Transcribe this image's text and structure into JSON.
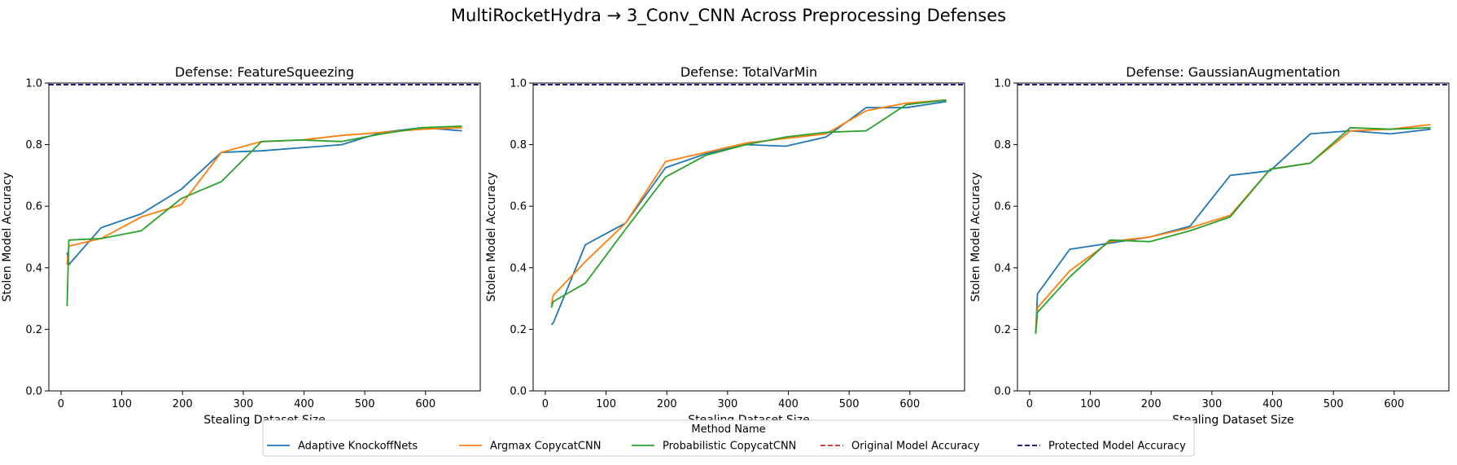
{
  "figure": {
    "title": "MultiRocketHydra → 3_Conv_CNN Across Preprocessing Defenses"
  },
  "legend": {
    "title": "Method Name",
    "entries": [
      {
        "label": "Adaptive KnockoffNets",
        "color": "#1f77b4",
        "dash": false
      },
      {
        "label": "Argmax CopycatCNN",
        "color": "#ff7f0e",
        "dash": false
      },
      {
        "label": "Probabilistic CopycatCNN",
        "color": "#2ca02c",
        "dash": false
      },
      {
        "label": "Original Model Accuracy",
        "color": "#d62728",
        "dash": true
      },
      {
        "label": "Protected Model Accuracy",
        "color": "#00008b",
        "dash": true
      }
    ]
  },
  "chart_data": [
    {
      "type": "line",
      "title": "Defense: FeatureSqueezing",
      "xlabel": "Stealing Dataset Size",
      "ylabel": "Stolen Model Accuracy",
      "xlim": [
        -20,
        690
      ],
      "ylim": [
        0,
        1
      ],
      "xticks": [
        0,
        100,
        200,
        300,
        400,
        500,
        600
      ],
      "yticks": [
        0.0,
        0.2,
        0.4,
        0.6,
        0.8,
        1.0
      ],
      "hlines": [
        {
          "name": "Original Model Accuracy",
          "y": 0.995,
          "color": "#d62728"
        },
        {
          "name": "Protected Model Accuracy",
          "y": 0.995,
          "color": "#00008b"
        }
      ],
      "series": [
        {
          "name": "Adaptive KnockoffNets",
          "color": "#1f77b4",
          "x": [
            10,
            13,
            66,
            132,
            198,
            264,
            330,
            396,
            462,
            528,
            594,
            660
          ],
          "y": [
            0.45,
            0.41,
            0.53,
            0.575,
            0.655,
            0.775,
            0.78,
            0.79,
            0.8,
            0.84,
            0.855,
            0.845
          ]
        },
        {
          "name": "Argmax CopycatCNN",
          "color": "#ff7f0e",
          "x": [
            10,
            13,
            66,
            132,
            198,
            264,
            330,
            396,
            462,
            528,
            594,
            660
          ],
          "y": [
            0.41,
            0.47,
            0.495,
            0.565,
            0.605,
            0.775,
            0.81,
            0.815,
            0.83,
            0.84,
            0.85,
            0.855
          ]
        },
        {
          "name": "Probabilistic CopycatCNN",
          "color": "#2ca02c",
          "x": [
            10,
            13,
            66,
            132,
            198,
            264,
            330,
            396,
            462,
            528,
            594,
            660
          ],
          "y": [
            0.275,
            0.49,
            0.495,
            0.52,
            0.625,
            0.68,
            0.81,
            0.815,
            0.81,
            0.835,
            0.855,
            0.86
          ]
        }
      ]
    },
    {
      "type": "line",
      "title": "Defense: TotalVarMin",
      "xlabel": "Stealing Dataset Size",
      "ylabel": "Stolen Model Accuracy",
      "xlim": [
        -20,
        690
      ],
      "ylim": [
        0,
        1
      ],
      "xticks": [
        0,
        100,
        200,
        300,
        400,
        500,
        600
      ],
      "yticks": [
        0.0,
        0.2,
        0.4,
        0.6,
        0.8,
        1.0
      ],
      "hlines": [
        {
          "name": "Original Model Accuracy",
          "y": 0.995,
          "color": "#d62728"
        },
        {
          "name": "Protected Model Accuracy",
          "y": 0.995,
          "color": "#00008b"
        }
      ],
      "series": [
        {
          "name": "Adaptive KnockoffNets",
          "color": "#1f77b4",
          "x": [
            10,
            13,
            66,
            132,
            198,
            264,
            330,
            396,
            462,
            528,
            594,
            660
          ],
          "y": [
            0.215,
            0.22,
            0.475,
            0.545,
            0.725,
            0.77,
            0.8,
            0.795,
            0.825,
            0.92,
            0.92,
            0.94
          ]
        },
        {
          "name": "Argmax CopycatCNN",
          "color": "#ff7f0e",
          "x": [
            10,
            13,
            66,
            132,
            198,
            264,
            330,
            396,
            462,
            528,
            594,
            660
          ],
          "y": [
            0.28,
            0.31,
            0.42,
            0.545,
            0.745,
            0.775,
            0.805,
            0.82,
            0.835,
            0.91,
            0.935,
            0.945
          ]
        },
        {
          "name": "Probabilistic CopycatCNN",
          "color": "#2ca02c",
          "x": [
            10,
            13,
            66,
            132,
            198,
            264,
            330,
            396,
            462,
            528,
            594,
            660
          ],
          "y": [
            0.27,
            0.29,
            0.35,
            0.525,
            0.695,
            0.765,
            0.8,
            0.825,
            0.84,
            0.845,
            0.93,
            0.945
          ]
        }
      ]
    },
    {
      "type": "line",
      "title": "Defense: GaussianAugmentation",
      "xlabel": "Stealing Dataset Size",
      "ylabel": "Stolen Model Accuracy",
      "xlim": [
        -20,
        690
      ],
      "ylim": [
        0,
        1
      ],
      "xticks": [
        0,
        100,
        200,
        300,
        400,
        500,
        600
      ],
      "yticks": [
        0.0,
        0.2,
        0.4,
        0.6,
        0.8,
        1.0
      ],
      "hlines": [
        {
          "name": "Original Model Accuracy",
          "y": 0.995,
          "color": "#d62728"
        },
        {
          "name": "Protected Model Accuracy",
          "y": 0.995,
          "color": "#00008b"
        }
      ],
      "series": [
        {
          "name": "Adaptive KnockoffNets",
          "color": "#1f77b4",
          "x": [
            10,
            13,
            66,
            132,
            198,
            264,
            330,
            396,
            462,
            528,
            594,
            660
          ],
          "y": [
            0.19,
            0.315,
            0.46,
            0.48,
            0.5,
            0.535,
            0.7,
            0.715,
            0.835,
            0.845,
            0.835,
            0.85
          ]
        },
        {
          "name": "Argmax CopycatCNN",
          "color": "#ff7f0e",
          "x": [
            10,
            13,
            66,
            132,
            198,
            264,
            330,
            396,
            462,
            528,
            594,
            660
          ],
          "y": [
            0.2,
            0.27,
            0.39,
            0.485,
            0.5,
            0.53,
            0.57,
            0.72,
            0.74,
            0.845,
            0.85,
            0.865
          ]
        },
        {
          "name": "Probabilistic CopycatCNN",
          "color": "#2ca02c",
          "x": [
            10,
            13,
            66,
            132,
            198,
            264,
            330,
            396,
            462,
            528,
            594,
            660
          ],
          "y": [
            0.185,
            0.255,
            0.37,
            0.49,
            0.485,
            0.52,
            0.565,
            0.72,
            0.74,
            0.855,
            0.85,
            0.855
          ]
        }
      ]
    }
  ]
}
